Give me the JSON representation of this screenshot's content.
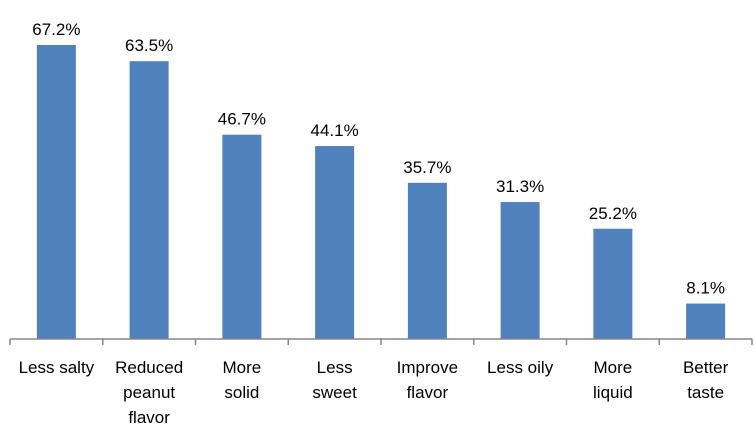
{
  "chart_data": {
    "type": "bar",
    "categories": [
      [
        "Less salty"
      ],
      [
        "Reduced",
        "peanut",
        "flavor"
      ],
      [
        "More",
        "solid"
      ],
      [
        "Less",
        "sweet"
      ],
      [
        "Improve",
        "flavor"
      ],
      [
        "Less oily"
      ],
      [
        "More",
        "liquid"
      ],
      [
        "Better",
        "taste"
      ]
    ],
    "values": [
      67.2,
      63.5,
      46.7,
      44.1,
      35.7,
      31.3,
      25.2,
      8.1
    ],
    "value_labels": [
      "67.2%",
      "63.5%",
      "46.7%",
      "44.1%",
      "35.7%",
      "31.3%",
      "25.2%",
      "8.1%"
    ],
    "title": "",
    "xlabel": "",
    "ylabel": "",
    "ylim": [
      0,
      67.2
    ],
    "y_axis_visible": false,
    "grid": false,
    "legend": "none",
    "bar_color": "#4F81BD",
    "axis_color": "#868686"
  }
}
